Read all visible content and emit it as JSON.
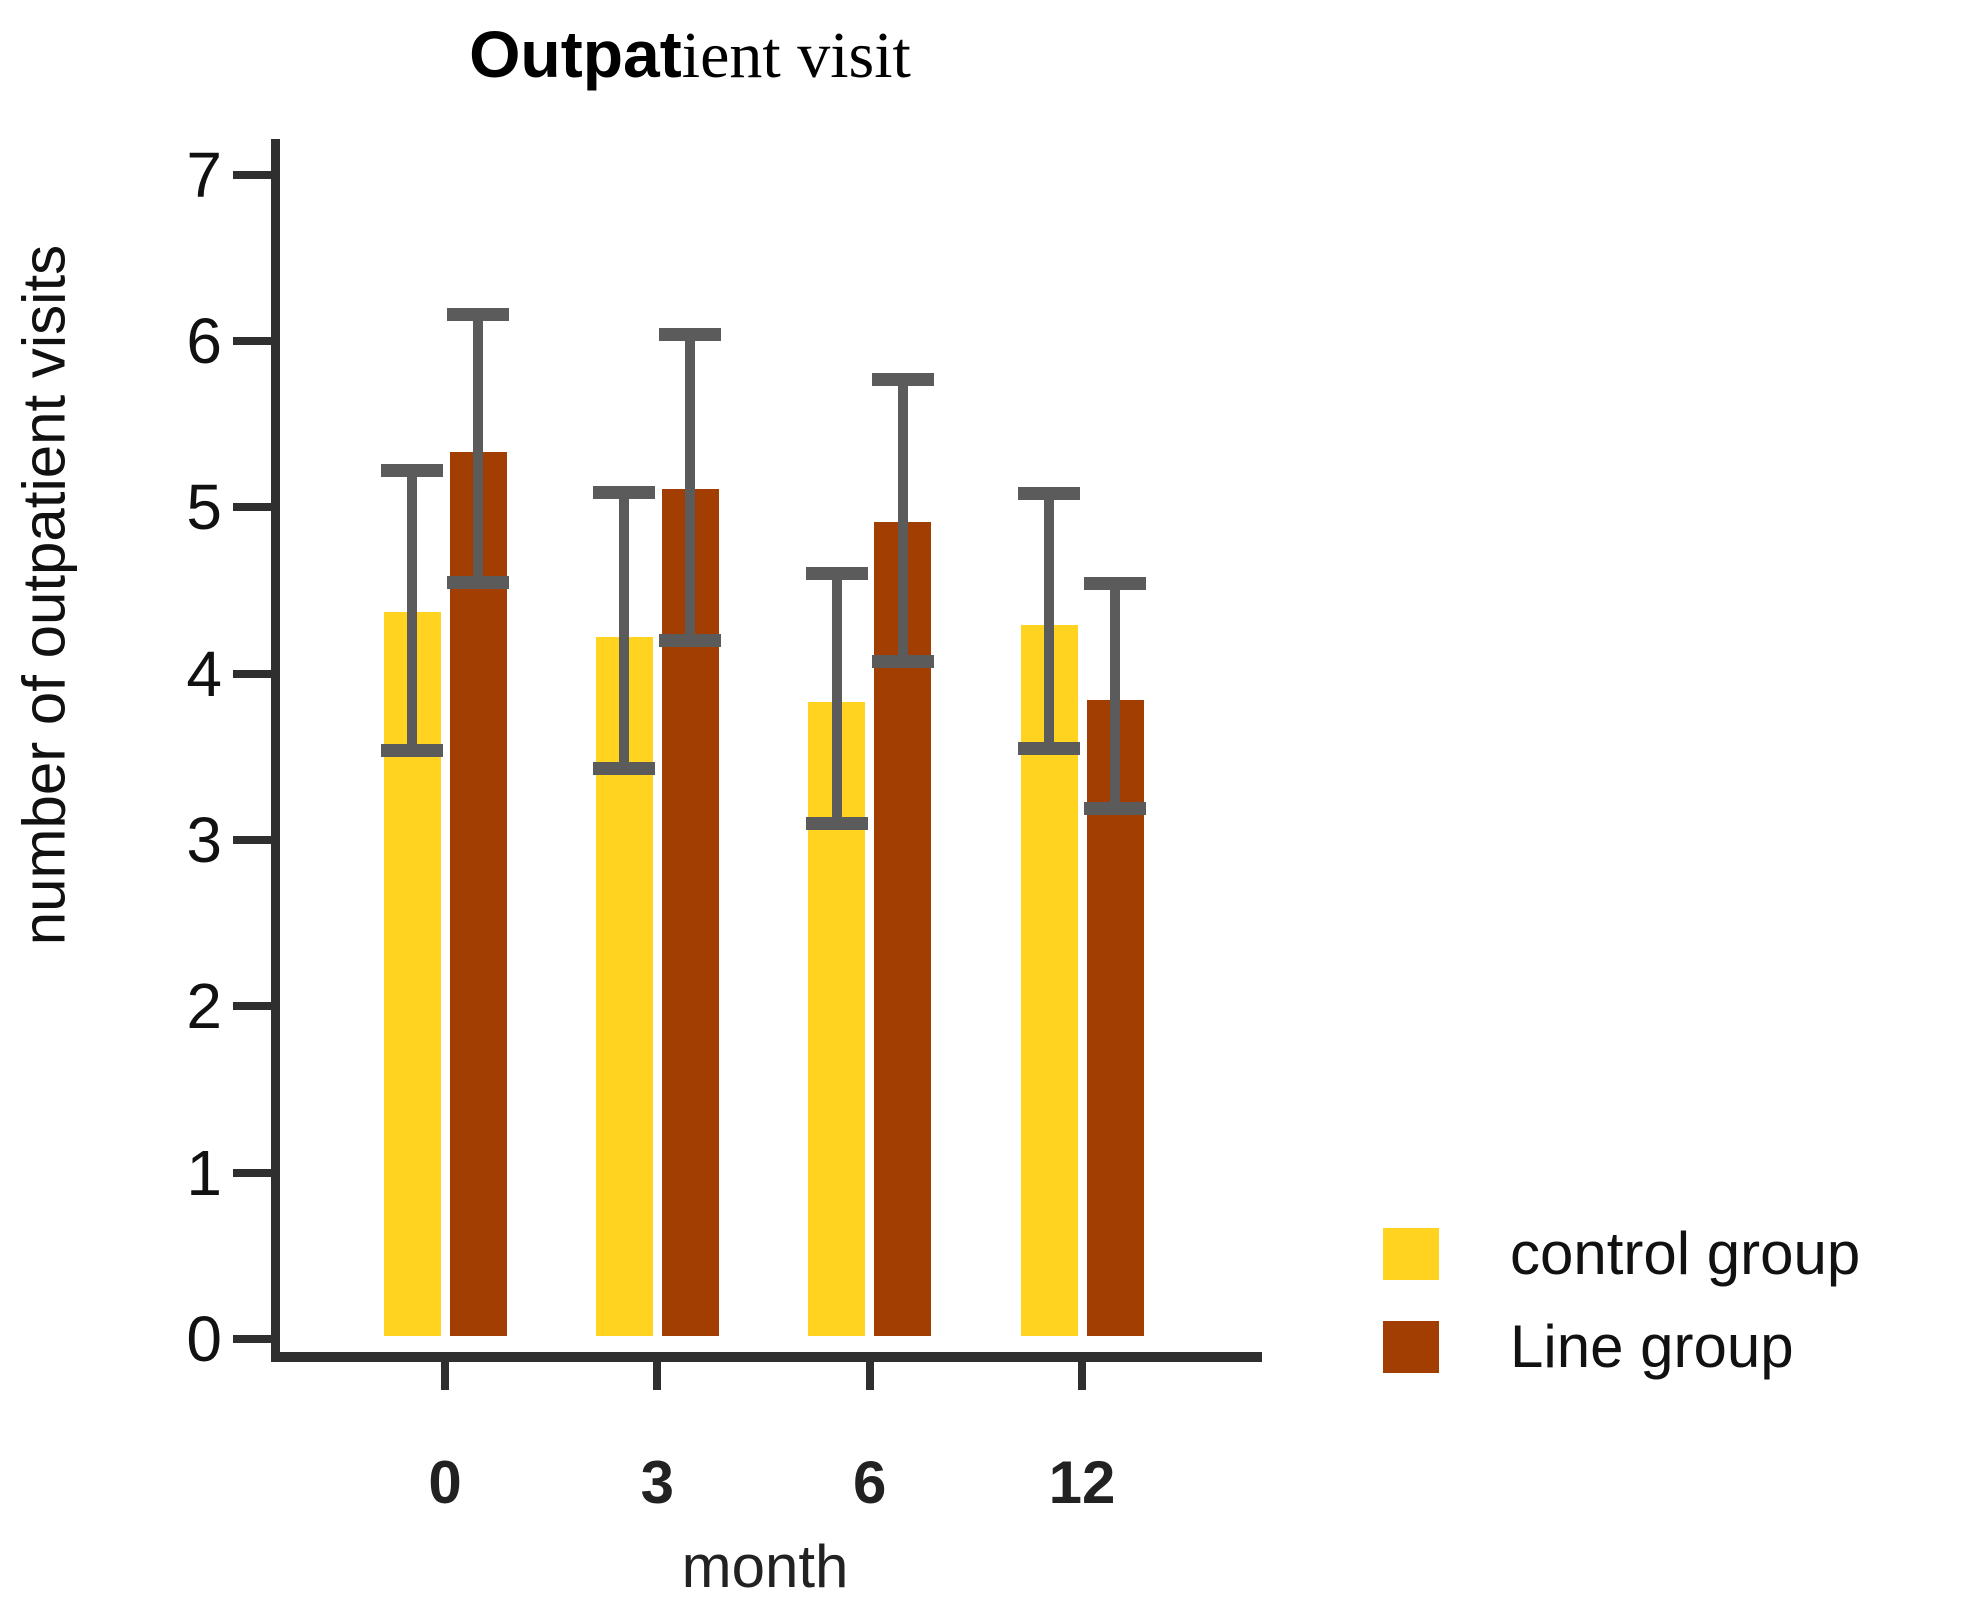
{
  "title": {
    "full": "Outpatient visit",
    "bold_part": "Outpat",
    "rest_part": "ient visit"
  },
  "chart_data": {
    "type": "bar",
    "title": "Outpatient visit",
    "xlabel": "month",
    "ylabel": "number of outpatient visits",
    "ylim": [
      0,
      7
    ],
    "yticks": [
      "0",
      "1",
      "2",
      "3",
      "4",
      "5",
      "6",
      "7"
    ],
    "grid": false,
    "legend_position": "bottom-right",
    "categories": [
      "0",
      "3",
      "6",
      "12"
    ],
    "series": [
      {
        "name": "control group",
        "color": "#FFD320",
        "values": [
          4.37,
          4.22,
          3.83,
          4.29
        ],
        "err_low": [
          3.54,
          3.43,
          3.1,
          3.55
        ],
        "err_high": [
          5.22,
          5.09,
          4.6,
          5.08
        ]
      },
      {
        "name": "Line group",
        "color": "#A33E03",
        "values": [
          5.33,
          5.11,
          4.91,
          3.84
        ],
        "err_low": [
          4.55,
          4.2,
          4.07,
          3.19
        ],
        "err_high": [
          6.16,
          6.04,
          5.77,
          4.54
        ]
      }
    ],
    "error_bar_color": "#5B5B5B",
    "axis_color": "#2F2F2F",
    "text_color": "#111111"
  }
}
